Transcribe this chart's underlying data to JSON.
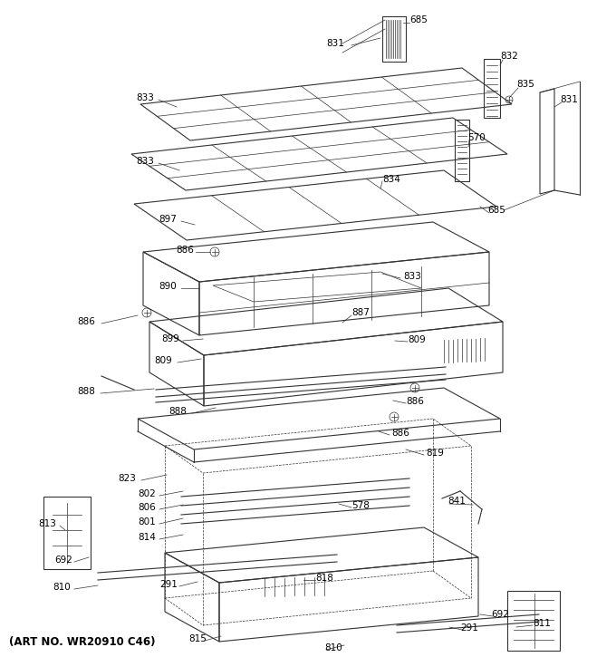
{
  "art_no": "(ART NO. WR20910 C46)",
  "bg_color": "#ffffff",
  "line_color": "#333333",
  "label_color": "#000000"
}
